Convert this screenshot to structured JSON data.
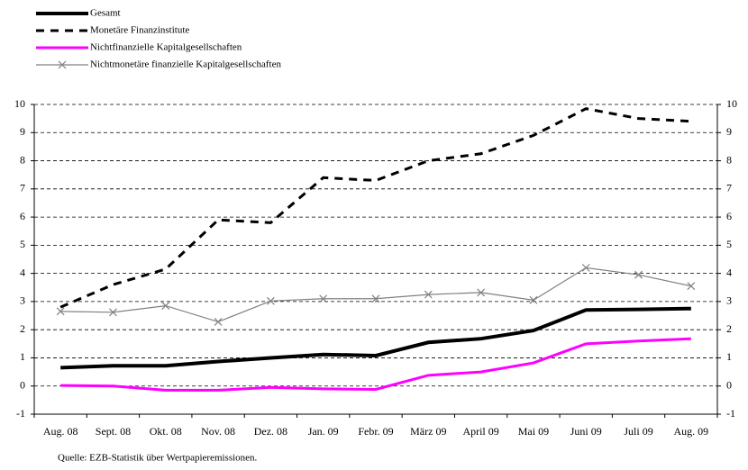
{
  "chart_data": {
    "type": "line",
    "categories": [
      "Aug. 08",
      "Sept. 08",
      "Okt. 08",
      "Nov. 08",
      "Dez. 08",
      "Jan. 09",
      "Febr. 09",
      "März 09",
      "April 09",
      "Mai 09",
      "Juni 09",
      "Juli 09",
      "Aug. 09"
    ],
    "series": [
      {
        "name": "Gesamt",
        "color": "#000000",
        "values": [
          0.65,
          0.72,
          0.72,
          0.87,
          1.0,
          1.12,
          1.08,
          1.55,
          1.68,
          1.97,
          2.7,
          2.72,
          2.75
        ]
      },
      {
        "name": "Monetäre Finanzinstitute",
        "color": "#000000",
        "values": [
          2.8,
          3.6,
          4.15,
          5.9,
          5.8,
          7.4,
          7.3,
          8.0,
          8.25,
          8.9,
          9.85,
          9.5,
          9.4
        ]
      },
      {
        "name": "Nichtfinanzielle Kapitalgesellschaften",
        "color": "#ff00ff",
        "values": [
          0.02,
          0.0,
          -0.15,
          -0.15,
          -0.05,
          -0.1,
          -0.12,
          0.38,
          0.5,
          0.82,
          1.5,
          1.6,
          1.68
        ]
      },
      {
        "name": "Nichtmonetäre finanzielle Kapitalgesellschaften",
        "color": "#808080",
        "values": [
          2.65,
          2.62,
          2.85,
          2.28,
          3.02,
          3.1,
          3.1,
          3.25,
          3.32,
          3.05,
          4.2,
          3.95,
          3.55
        ]
      }
    ],
    "ylim": [
      -1,
      10
    ],
    "yticks": [
      -1,
      0,
      1,
      2,
      3,
      4,
      5,
      6,
      7,
      8,
      9,
      10
    ],
    "grid": true,
    "legend": "top-left",
    "source": "Quelle: EZB-Statistik über Wertpapieremissionen."
  }
}
